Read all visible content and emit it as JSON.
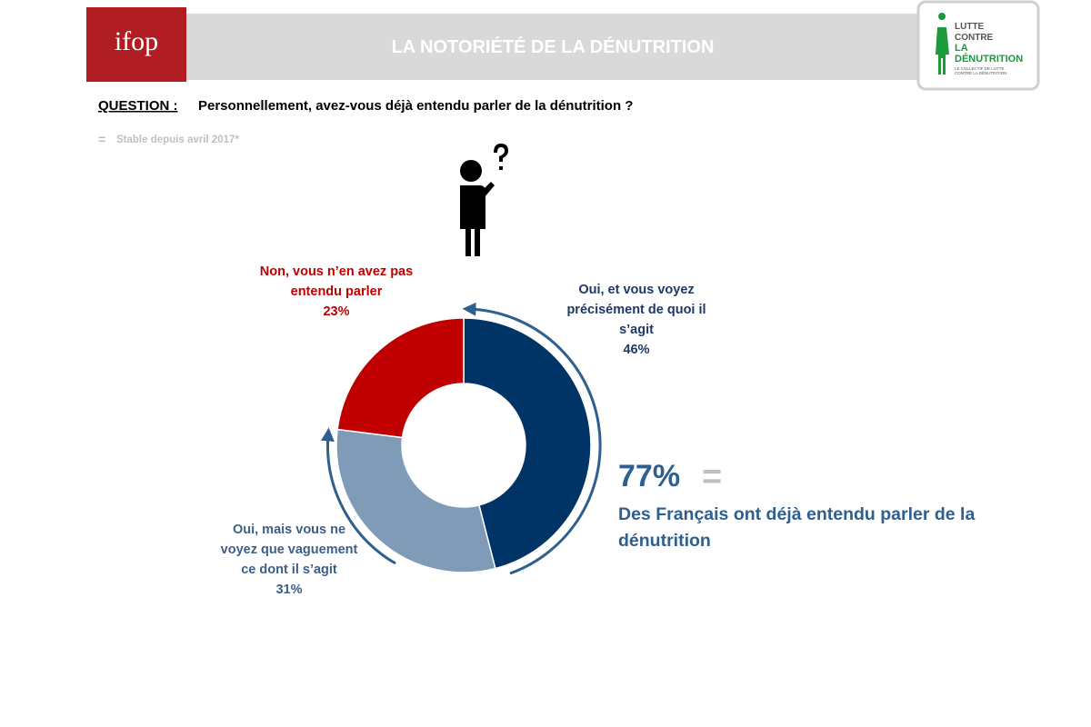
{
  "header": {
    "logo": "ifop",
    "title": "LA NOTORIÉTÉ DE LA DÉNUTRITION",
    "partner_logo": [
      "LUTTE",
      "CONTRE",
      "LA",
      "DÉNUTRITION"
    ],
    "partner_tagline": [
      "LE COLLECTIF DE LUTTE",
      "CONTRE LA DÉNUTRITION"
    ]
  },
  "question": {
    "label": "QUESTION :",
    "text": "Personnellement, avez-vous déjà entendu parler de la dénutrition ?"
  },
  "note": {
    "symbol": "=",
    "text": "Stable depuis avril 2017*"
  },
  "chart_data": {
    "type": "donut",
    "categories": [
      "Oui, et vous voyez précisément de quoi il s’agit",
      "Oui, mais vous ne voyez que vaguement ce dont il s’agit",
      "Non, vous n’en avez pas entendu parler"
    ],
    "values": [
      46,
      31,
      23
    ],
    "value_labels": [
      "46%",
      "31%",
      "23%"
    ],
    "colors": [
      "#003366",
      "#7f9bb8",
      "#c00000"
    ]
  },
  "highlight": {
    "figure": "77%",
    "symbol": "=",
    "text": "Des Français ont déjà entendu parler de la dénutrition"
  }
}
